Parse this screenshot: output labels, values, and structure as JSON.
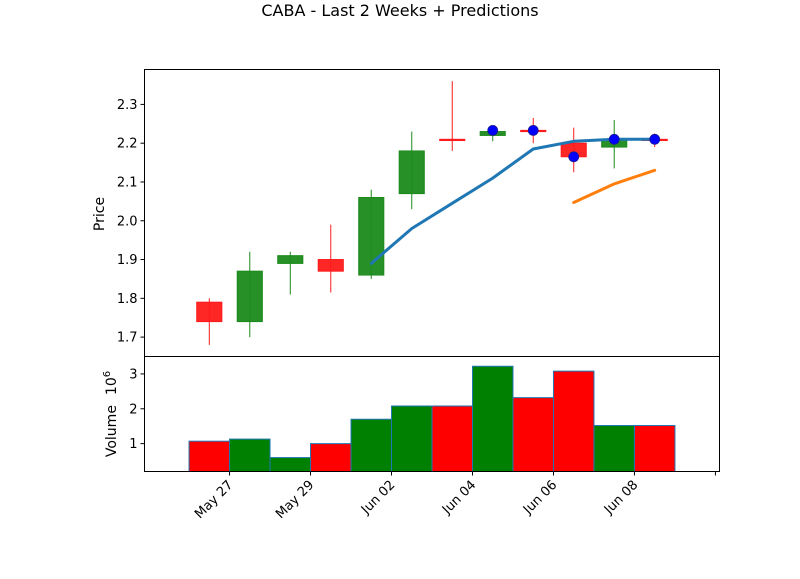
{
  "chart_data": {
    "type": "candlestick",
    "title": "CABA - Last 2 Weeks + Predictions",
    "price_panel": {
      "ylabel": "Price",
      "ylim": [
        1.65,
        2.39
      ],
      "yticks": [
        1.7,
        1.8,
        1.9,
        2.0,
        2.1,
        2.2,
        2.3
      ],
      "ytick_labels": [
        "1.7",
        "1.8",
        "1.9",
        "2.0",
        "2.1",
        "2.2",
        "2.3"
      ]
    },
    "volume_panel": {
      "ylabel": "Volume",
      "ylabel_multiplier": "10",
      "ylabel_exponent": "6",
      "ylim": [
        0.2,
        3.5
      ],
      "yticks": [
        1,
        2,
        3
      ],
      "ytick_labels": [
        "1",
        "2",
        "3"
      ]
    },
    "x_axis": {
      "tick_positions": [
        0.5,
        2.5,
        4.5,
        6.5,
        8.5,
        10.5,
        12.5
      ],
      "tick_labels": [
        "May 27",
        "May 29",
        "Jun 02",
        "Jun 04",
        "Jun 06",
        "Jun 08",
        ""
      ],
      "xlim": [
        -1.6,
        12.6
      ]
    },
    "candles": [
      {
        "x": 0,
        "open": 1.79,
        "high": 1.8,
        "low": 1.68,
        "close": 1.74,
        "direction": "down"
      },
      {
        "x": 1,
        "open": 1.74,
        "high": 1.92,
        "low": 1.7,
        "close": 1.87,
        "direction": "up"
      },
      {
        "x": 2,
        "open": 1.89,
        "high": 1.92,
        "low": 1.81,
        "close": 1.91,
        "direction": "up"
      },
      {
        "x": 3,
        "open": 1.9,
        "high": 1.99,
        "low": 1.815,
        "close": 1.87,
        "direction": "down"
      },
      {
        "x": 4,
        "open": 1.86,
        "high": 2.08,
        "low": 1.85,
        "close": 2.06,
        "direction": "up"
      },
      {
        "x": 5,
        "open": 2.07,
        "high": 2.23,
        "low": 2.03,
        "close": 2.18,
        "direction": "up"
      },
      {
        "x": 6,
        "open": 2.21,
        "high": 2.36,
        "low": 2.18,
        "close": 2.21,
        "direction": "down"
      },
      {
        "x": 7,
        "open": 2.22,
        "high": 2.235,
        "low": 2.205,
        "close": 2.23,
        "direction": "up"
      },
      {
        "x": 8,
        "open": 2.233,
        "high": 2.265,
        "low": 2.2,
        "close": 2.233,
        "direction": "down"
      },
      {
        "x": 9,
        "open": 2.2,
        "high": 2.24,
        "low": 2.125,
        "close": 2.165,
        "direction": "down"
      },
      {
        "x": 10,
        "open": 2.19,
        "high": 2.26,
        "low": 2.135,
        "close": 2.21,
        "direction": "up"
      },
      {
        "x": 11,
        "open": 2.21,
        "high": 2.225,
        "low": 2.19,
        "close": 2.21,
        "direction": "down"
      }
    ],
    "markers": [
      {
        "x": 7,
        "y": 2.233
      },
      {
        "x": 8,
        "y": 2.233
      },
      {
        "x": 9,
        "y": 2.165
      },
      {
        "x": 10,
        "y": 2.21
      },
      {
        "x": 11,
        "y": 2.21
      }
    ],
    "series": [
      {
        "color": "#1f77b4",
        "points": [
          [
            4,
            1.89
          ],
          [
            5,
            1.98
          ],
          [
            6,
            2.045
          ],
          [
            7,
            2.11
          ],
          [
            8,
            2.185
          ],
          [
            9,
            2.205
          ],
          [
            10,
            2.21
          ],
          [
            11,
            2.21
          ]
        ]
      },
      {
        "color": "#ff7f0e",
        "points": [
          [
            9,
            2.047
          ],
          [
            10,
            2.095
          ],
          [
            11,
            2.13
          ]
        ]
      }
    ],
    "volume": [
      {
        "x": 0,
        "value": 1.07,
        "direction": "down"
      },
      {
        "x": 1,
        "value": 1.13,
        "direction": "up"
      },
      {
        "x": 2,
        "value": 0.6,
        "direction": "up"
      },
      {
        "x": 3,
        "value": 1.0,
        "direction": "down"
      },
      {
        "x": 4,
        "value": 1.7,
        "direction": "up"
      },
      {
        "x": 5,
        "value": 2.08,
        "direction": "up"
      },
      {
        "x": 6,
        "value": 2.08,
        "direction": "down"
      },
      {
        "x": 7,
        "value": 3.22,
        "direction": "up"
      },
      {
        "x": 8,
        "value": 2.32,
        "direction": "down"
      },
      {
        "x": 9,
        "value": 3.08,
        "direction": "down"
      },
      {
        "x": 10,
        "value": 1.52,
        "direction": "up"
      },
      {
        "x": 11,
        "value": 1.52,
        "direction": "down"
      }
    ],
    "colors": {
      "up": "#1b8a1b",
      "down": "#ff1a1a",
      "volume_up": "#008000",
      "volume_down": "#ff0000",
      "volume_edge": "#1f77b4",
      "marker": "#0000ff"
    }
  }
}
